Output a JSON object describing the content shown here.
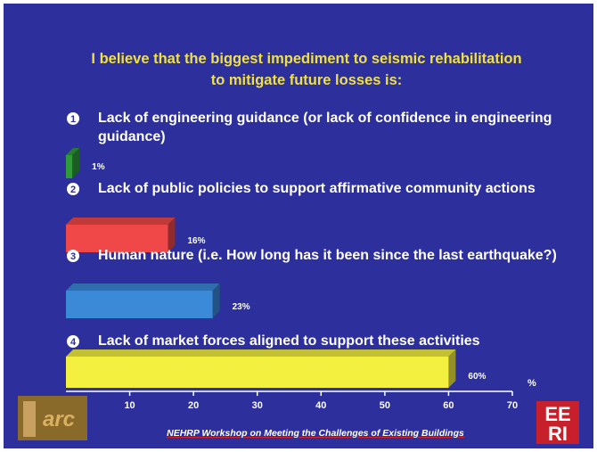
{
  "title": "I believe that the biggest impediment to seismic rehabilitation to mitigate future losses is:",
  "chart_data": {
    "type": "bar",
    "orientation": "horizontal",
    "item_numbers": [
      "1",
      "2",
      "3",
      "4"
    ],
    "categories": [
      "Lack of engineering guidance (or lack of confidence in engineering guidance)",
      "Lack of public policies to support affirmative community actions",
      "Human nature (i.e. How long has it been since the last earthquake?)",
      "Lack of market forces aligned to support these activities"
    ],
    "values": [
      1,
      16,
      23,
      60
    ],
    "value_labels": [
      "1%",
      "16%",
      "23%",
      "60%"
    ],
    "colors": [
      "#2e9a3a",
      "#f04848",
      "#3a8ad8",
      "#f4f040"
    ],
    "xlim": [
      0,
      70
    ],
    "xticks": [
      10,
      20,
      30,
      40,
      50,
      60,
      70
    ],
    "xlabel": "%"
  },
  "footer": "NEHRP Workshop on Meeting the Challenges of Existing Buildings",
  "logo_right": [
    "EE",
    "RI"
  ],
  "logo_left": "arc"
}
